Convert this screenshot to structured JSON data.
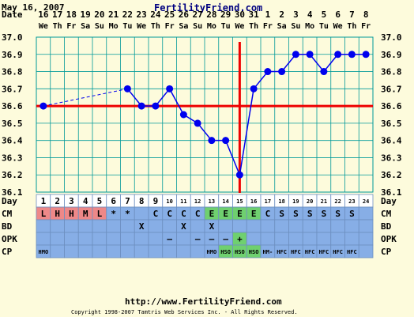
{
  "header": {
    "date_text": "May 16, 2007",
    "brand": "FertilityFriend.com"
  },
  "footer": {
    "url": "http://www.FertilityFriend.com",
    "copyright": "Copyright 1998-2007 Tamtris Web Services Inc. - All Rights Reserved."
  },
  "colors": {
    "background": "#fdfbdc",
    "grid_line": "#009999",
    "series": "#0000ee",
    "coverline": "#ee0000",
    "table_blue": "#87aee6",
    "table_pink": "#ee8888",
    "table_green": "#6fd06f",
    "day_row_bg": "#ffffff"
  },
  "chart_data": {
    "type": "line",
    "ylim": [
      36.1,
      37.0
    ],
    "yticks": [
      "36.1",
      "36.2",
      "36.3",
      "36.4",
      "36.5",
      "36.6",
      "36.7",
      "36.8",
      "36.9",
      "37.0"
    ],
    "date_row_label": "Date",
    "day_row_label": "Day",
    "dates": [
      "16",
      "17",
      "18",
      "19",
      "20",
      "21",
      "22",
      "23",
      "24",
      "25",
      "26",
      "27",
      "28",
      "29",
      "30",
      "31",
      "1",
      "2",
      "3",
      "4",
      "5",
      "6",
      "7",
      "8"
    ],
    "weekdays": [
      "We",
      "Th",
      "Fr",
      "Sa",
      "Su",
      "Mo",
      "Tu",
      "We",
      "Th",
      "Fr",
      "Sa",
      "Su",
      "Mo",
      "Tu",
      "We",
      "Th",
      "Fr",
      "Sa",
      "Su",
      "Mo",
      "Tu",
      "We",
      "Th",
      "Fr"
    ],
    "days": [
      "1",
      "2",
      "3",
      "4",
      "5",
      "6",
      "7",
      "8",
      "9",
      "10",
      "11",
      "12",
      "13",
      "14",
      "15",
      "16",
      "17",
      "18",
      "19",
      "20",
      "21",
      "22",
      "23",
      "24"
    ],
    "temperatures": [
      36.6,
      null,
      null,
      null,
      null,
      null,
      36.7,
      36.6,
      36.6,
      36.7,
      36.55,
      36.5,
      36.4,
      36.4,
      36.2,
      36.7,
      36.8,
      36.8,
      36.9,
      36.9,
      36.8,
      36.9,
      36.9,
      36.9
    ],
    "coverline": 36.6,
    "ovulation_day": 15,
    "rows": [
      {
        "label": "CM",
        "cells": [
          "L",
          "H",
          "H",
          "M",
          "L",
          "*",
          "*",
          "",
          "C",
          "C",
          "C",
          "C",
          "E",
          "E",
          "E",
          "E",
          "C",
          "S",
          "S",
          "S",
          "S",
          "S",
          "S",
          ""
        ]
      },
      {
        "label": "BD",
        "cells": [
          "",
          "",
          "",
          "",
          "",
          "",
          "",
          "X",
          "",
          "",
          "X",
          "",
          "X",
          "",
          "",
          "",
          "",
          "",
          "",
          "",
          "",
          "",
          "",
          ""
        ]
      },
      {
        "label": "OPK",
        "cells": [
          "",
          "",
          "",
          "",
          "",
          "",
          "",
          "",
          "",
          "–",
          "",
          "–",
          "–",
          "–",
          "+",
          "",
          "",
          "",
          "",
          "",
          "",
          "",
          "",
          ""
        ]
      },
      {
        "label": "CP",
        "cells": [
          "HMO",
          "",
          "",
          "",
          "",
          "",
          "",
          "",
          "",
          "",
          "",
          "",
          "HMO",
          "HSO",
          "HSO",
          "HSO",
          "HM-",
          "HFC",
          "HFC",
          "HFC",
          "HFC",
          "HFC",
          "HFC",
          ""
        ]
      }
    ]
  }
}
